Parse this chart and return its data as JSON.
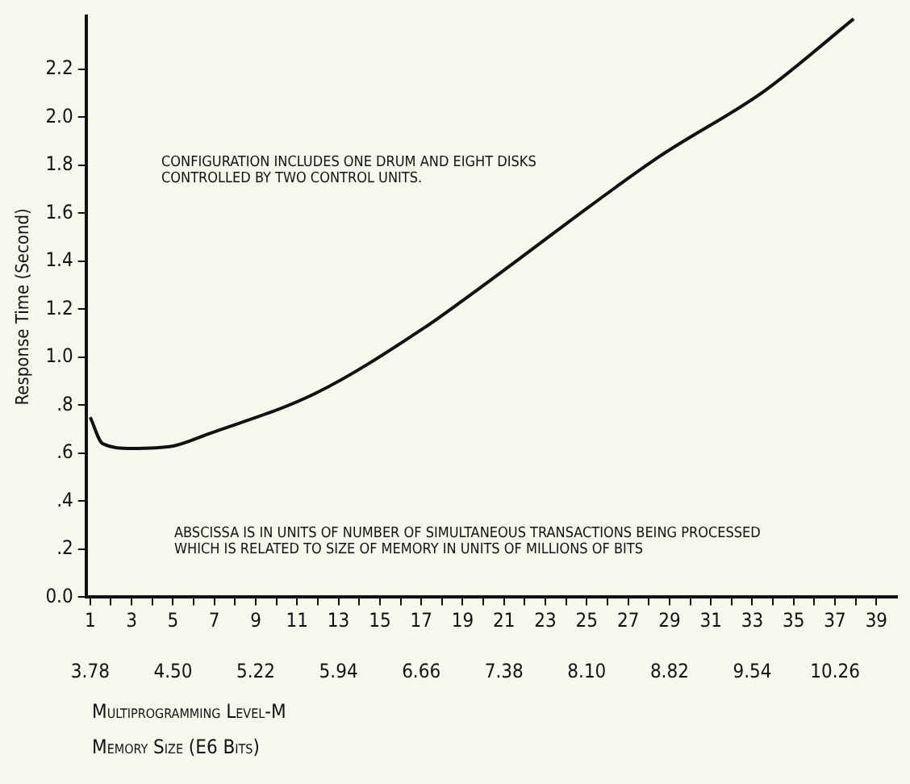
{
  "chart_data": {
    "type": "line",
    "ylabel": "Response Time (Second)",
    "xlabel": "Multiprogramming Level-M",
    "x2label": "Memory Size (E6 Bits)",
    "annotations": [
      "CONFIGURATION INCLUDES ONE DRUM AND EIGHT DISKS CONTROLLED BY TWO CONTROL UNITS.",
      "ABSCISSA IS IN UNITS OF NUMBER OF SIMULTANEOUS TRANSACTIONS BEING PROCESSED WHICH IS RELATED TO SIZE OF MEMORY IN UNITS OF MILLIONS OF BITS"
    ],
    "x": [
      1,
      1.6,
      3,
      5,
      6.7,
      11.9,
      17.1,
      19.7,
      28.4,
      33.6,
      37.9
    ],
    "series": [
      {
        "color": "#111111",
        "values": [
          0.75,
          0.64,
          0.62,
          0.63,
          0.68,
          0.85,
          1.12,
          1.28,
          1.83,
          2.11,
          2.41
        ]
      }
    ],
    "xlim": [
      0.8,
      40
    ],
    "xticks": [
      1,
      {
        "value": 2,
        "label": null
      },
      3,
      {
        "value": 4,
        "label": null
      },
      5,
      {
        "value": 6,
        "label": null
      },
      7,
      {
        "value": 8,
        "label": null
      },
      9,
      {
        "value": 10,
        "label": null
      },
      11,
      {
        "value": 12,
        "label": null
      },
      13,
      {
        "value": 14,
        "label": null
      },
      15,
      {
        "value": 16,
        "label": null
      },
      17,
      {
        "value": 18,
        "label": null
      },
      19,
      {
        "value": 20,
        "label": null
      },
      21,
      {
        "value": 22,
        "label": null
      },
      23,
      {
        "value": 24,
        "label": null
      },
      25,
      {
        "value": 26,
        "label": null
      },
      27,
      {
        "value": 28,
        "label": null
      },
      29,
      {
        "value": 30,
        "label": null
      },
      31,
      {
        "value": 32,
        "label": null
      },
      33,
      {
        "value": 34,
        "label": null
      },
      35,
      {
        "value": 36,
        "label": null
      },
      37,
      {
        "value": 38,
        "label": null
      },
      39
    ],
    "x2lim": [
      3.744,
      10.8
    ],
    "x2ticks": [
      3.78,
      {
        "value": 4.5,
        "label": "4.50"
      },
      5.22,
      5.94,
      6.66,
      7.38,
      {
        "value": 8.1,
        "label": "8.10"
      },
      8.82,
      9.54,
      10.26
    ],
    "ylim": [
      0,
      2.42
    ],
    "yticks": [
      {
        "value": 0,
        "label": "0.0"
      },
      {
        "value": 0.2,
        "label": ".2"
      },
      {
        "value": 0.4,
        "label": ".4"
      },
      {
        "value": 0.6,
        "label": ".6"
      },
      {
        "value": 0.8,
        "label": ".8"
      },
      {
        "value": 1,
        "label": "1.0"
      },
      1.2,
      1.4,
      1.6,
      1.8,
      {
        "value": 2,
        "label": "2.0"
      },
      2.2
    ],
    "grid": false,
    "legend": false,
    "marker": "none",
    "line_style": "solid"
  }
}
